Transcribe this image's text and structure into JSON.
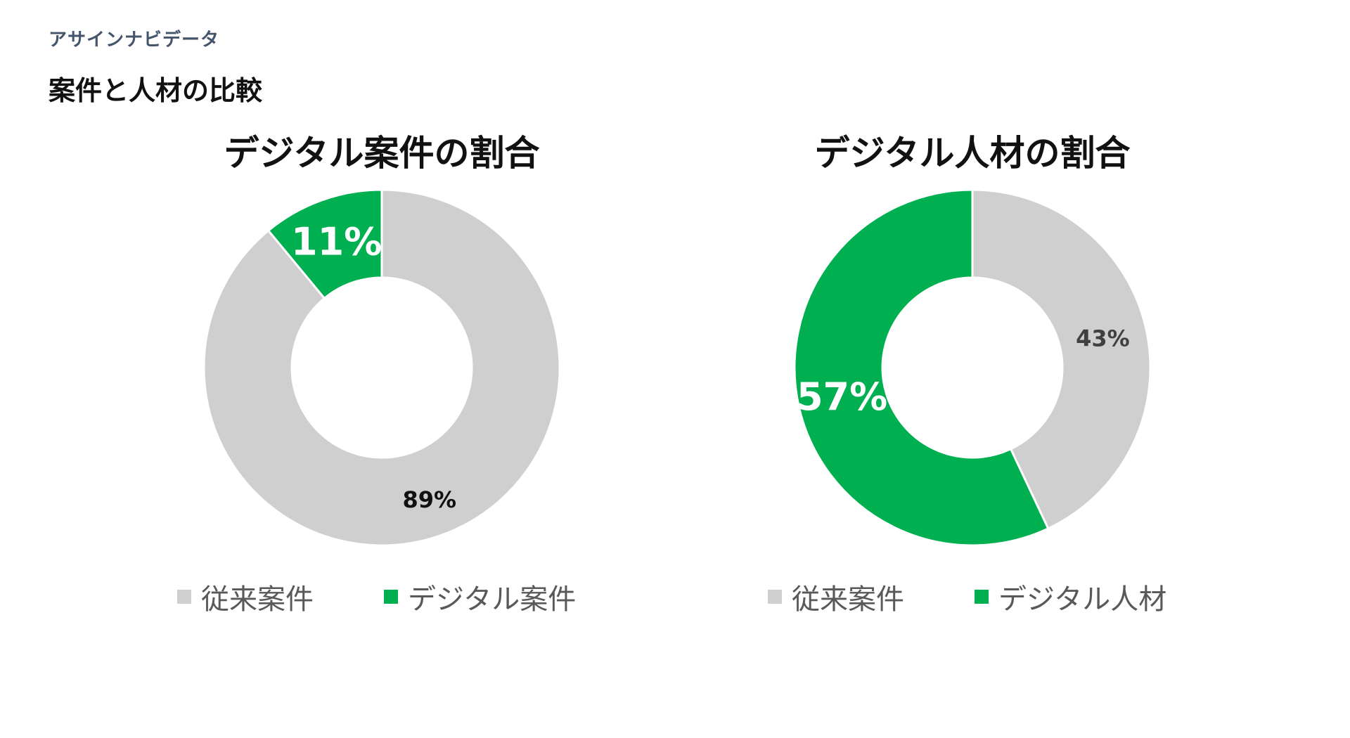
{
  "header": {
    "brand": "アサインナビデータ",
    "title": "案件と人材の比較"
  },
  "colors": {
    "gray": "#d0cfcf",
    "green": "#00b050",
    "brand_text": "#44546a"
  },
  "chart_data": [
    {
      "type": "pie",
      "subtype": "donut",
      "title": "デジタル案件の割合",
      "slices": [
        {
          "name": "従来案件",
          "value": 89,
          "label": "89%",
          "color": "#d0cfcf",
          "label_color": "#111111"
        },
        {
          "name": "デジタル案件",
          "value": 11,
          "label": "11%",
          "color": "#00b050",
          "label_color": "#ffffff"
        }
      ],
      "legend": "bottom"
    },
    {
      "type": "pie",
      "subtype": "donut",
      "title": "デジタル人材の割合",
      "slices": [
        {
          "name": "従来案件",
          "value": 43,
          "label": "43%",
          "color": "#d0cfcf",
          "label_color": "#404040"
        },
        {
          "name": "デジタル人材",
          "value": 57,
          "label": "57%",
          "color": "#00b050",
          "label_color": "#ffffff"
        }
      ],
      "legend": "bottom"
    }
  ]
}
